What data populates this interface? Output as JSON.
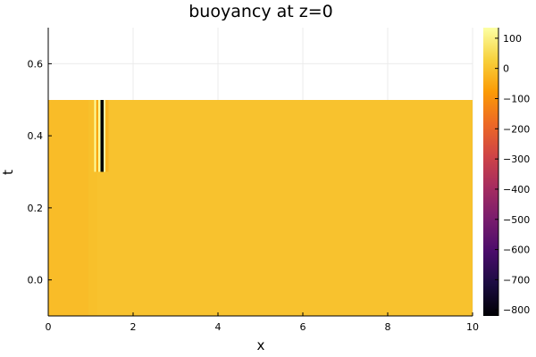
{
  "chart_data": {
    "type": "heatmap",
    "title": "buoyancy at z=0",
    "xlabel": "x",
    "ylabel": "t",
    "xlim": [
      0,
      10
    ],
    "ylim": [
      -0.1,
      0.7
    ],
    "x_ticks": [
      0,
      2,
      4,
      6,
      8,
      10
    ],
    "y_ticks": [
      0.0,
      0.2,
      0.4,
      0.6
    ],
    "y_tick_labels": [
      "0.0",
      "0.2",
      "0.4",
      "0.6"
    ],
    "grid": true,
    "colormap": "inferno",
    "colorbar": {
      "range": [
        -820,
        135
      ],
      "ticks": [
        100,
        0,
        -100,
        -200,
        -300,
        -400,
        -500,
        -600,
        -700,
        -800
      ],
      "colors": [
        "#000004",
        "#1b0c41",
        "#4a0c6b",
        "#781c6d",
        "#a52c60",
        "#cf4446",
        "#ed6925",
        "#fb9b06",
        "#f7d13d",
        "#fcffa4"
      ]
    },
    "data_extent": {
      "x": [
        0,
        10
      ],
      "t": [
        -0.1,
        0.5
      ]
    },
    "regions": [
      {
        "x": [
          0,
          1.0
        ],
        "t": [
          -0.1,
          0.5
        ],
        "value": -12
      },
      {
        "x": [
          1.0,
          10
        ],
        "t": [
          -0.1,
          0.5
        ],
        "value": 0
      },
      {
        "x": [
          0.95,
          1.15
        ],
        "t": [
          -0.1,
          0.5
        ],
        "value": -5
      }
    ],
    "front": [
      {
        "x": [
          1.08,
          1.13
        ],
        "t": [
          0.3,
          0.5
        ],
        "value": 130
      },
      {
        "x": [
          1.13,
          1.18
        ],
        "t": [
          0.3,
          0.5
        ],
        "value": -50
      },
      {
        "x": [
          1.18,
          1.23
        ],
        "t": [
          0.3,
          0.5
        ],
        "value": 125
      },
      {
        "x": [
          1.23,
          1.3
        ],
        "t": [
          0.3,
          0.5
        ],
        "value": -820
      },
      {
        "x": [
          1.3,
          1.35
        ],
        "t": [
          0.3,
          0.5
        ],
        "value": 130
      },
      {
        "x": [
          1.35,
          1.42
        ],
        "t": [
          0.3,
          0.5
        ],
        "value": -30
      }
    ]
  }
}
